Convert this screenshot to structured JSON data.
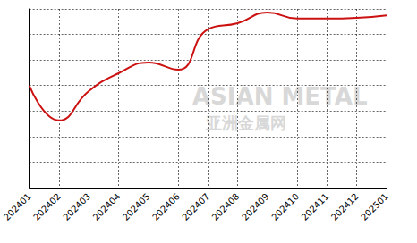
{
  "chart_data": {
    "type": "line",
    "categories": [
      "202401",
      "202402",
      "202403",
      "202404",
      "202405",
      "202406",
      "202407",
      "202408",
      "202409",
      "202410",
      "202411",
      "202412",
      "202501"
    ],
    "values": [
      4.0,
      2.63,
      3.78,
      4.48,
      4.9,
      4.62,
      6.2,
      6.44,
      6.86,
      6.62,
      6.62,
      6.65,
      6.75
    ],
    "color": "#cc1111",
    "line_style": "smooth",
    "ylim": [
      0,
      7
    ],
    "yticks": [
      0,
      1,
      2,
      3,
      4,
      5,
      6,
      7
    ],
    "grid": true,
    "tick_labels": "x",
    "annotations": [
      "ASIAN METAL",
      "亚洲金属网"
    ]
  }
}
